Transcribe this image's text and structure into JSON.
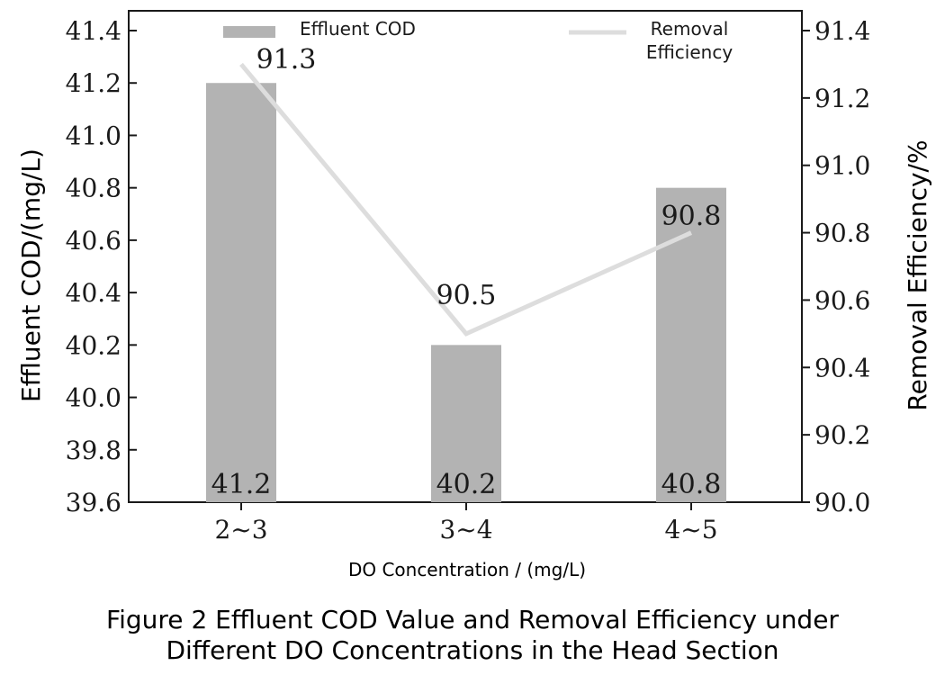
{
  "chart_data": {
    "type": "bar",
    "categories": [
      "2~3",
      "3~4",
      "4~5"
    ],
    "series": [
      {
        "name": "Effluent COD",
        "type": "bar",
        "axis": "left",
        "values": [
          41.2,
          40.2,
          40.8
        ],
        "labels": [
          "41.2",
          "40.2",
          "40.8"
        ],
        "color": "#b3b3b3"
      },
      {
        "name_lines": [
          "Removal",
          "Efficiency"
        ],
        "type": "line",
        "axis": "right",
        "values": [
          91.3,
          90.5,
          90.8
        ],
        "labels": [
          "91.3",
          "90.5",
          "90.8"
        ],
        "color": "#dddddd"
      }
    ],
    "xlabel": "DO Concentration / (mg/L)",
    "ylabel": "Effluent COD/(mg/L)",
    "ylabel_right": "Removal Efficiency/%",
    "ylim": [
      39.6,
      41.4
    ],
    "yticks": [
      "39.6",
      "39.8",
      "40.0",
      "40.2",
      "40.4",
      "40.6",
      "40.8",
      "41.0",
      "41.2",
      "41.4"
    ],
    "ylim_right": [
      90.0,
      91.4
    ],
    "yticks_right": [
      "90.0",
      "90.2",
      "90.4",
      "90.6",
      "90.8",
      "91.0",
      "91.2",
      "91.4"
    ],
    "legend_labels": [
      "Effluent COD",
      "Removal",
      "Efficiency"
    ],
    "legend_position": "top",
    "grid": false
  },
  "caption": {
    "line1": "Figure 2 Effluent COD Value and Removal Efficiency under",
    "line2": "Different DO Concentrations in the Head Section"
  }
}
